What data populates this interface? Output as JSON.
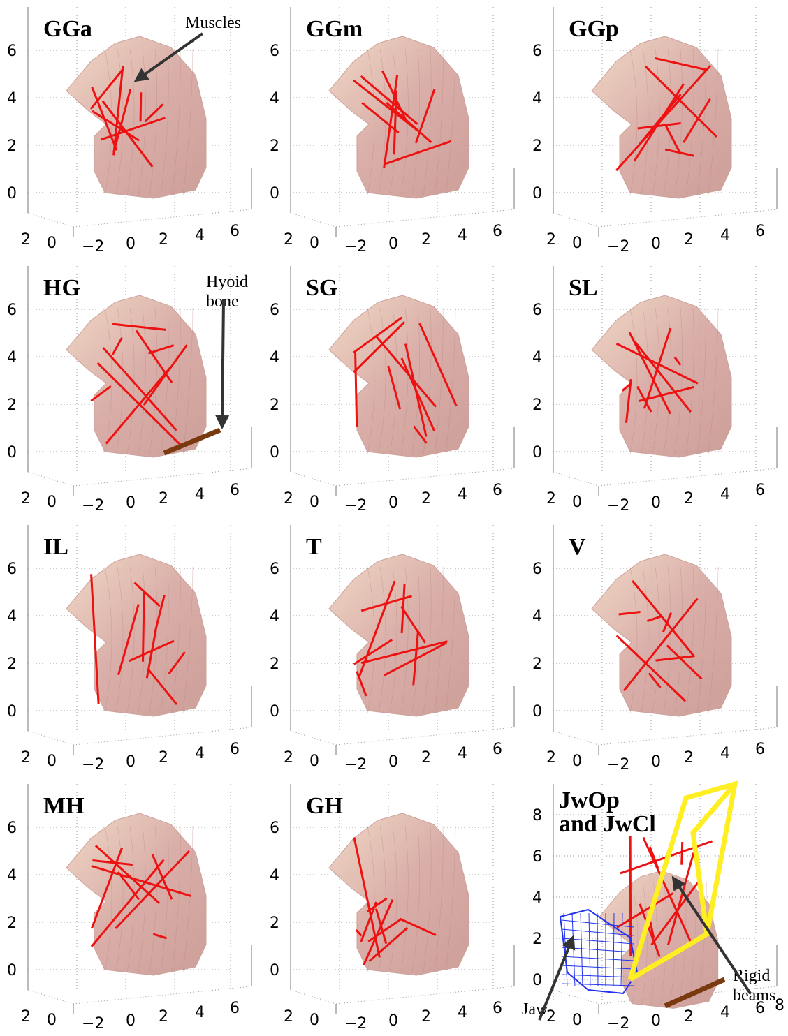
{
  "panels": [
    {
      "label_lines": [
        "GGa"
      ],
      "yticks": [
        "0",
        "2",
        "4",
        "6"
      ],
      "xticks": [
        "2",
        "0",
        "−2",
        "0",
        "2",
        "4",
        "6"
      ],
      "annotations": [
        {
          "lines": [
            "Muscles"
          ]
        }
      ]
    },
    {
      "label_lines": [
        "GGm"
      ],
      "yticks": [
        "0",
        "2",
        "4",
        "6"
      ],
      "xticks": [
        "2",
        "0",
        "−2",
        "0",
        "2",
        "4",
        "6"
      ],
      "annotations": []
    },
    {
      "label_lines": [
        "GGp"
      ],
      "yticks": [
        "0",
        "2",
        "4",
        "6"
      ],
      "xticks": [
        "2",
        "0",
        "−2",
        "0",
        "2",
        "4",
        "6"
      ],
      "annotations": []
    },
    {
      "label_lines": [
        "HG"
      ],
      "yticks": [
        "0",
        "2",
        "4",
        "6"
      ],
      "xticks": [
        "2",
        "0",
        "−2",
        "0",
        "2",
        "4",
        "6"
      ],
      "annotations": [
        {
          "lines": [
            "Hyoid",
            "bone"
          ]
        }
      ]
    },
    {
      "label_lines": [
        "SG"
      ],
      "yticks": [
        "0",
        "2",
        "4",
        "6"
      ],
      "xticks": [
        "2",
        "0",
        "−2",
        "0",
        "2",
        "4",
        "6"
      ],
      "annotations": []
    },
    {
      "label_lines": [
        "SL"
      ],
      "yticks": [
        "0",
        "2",
        "4",
        "6"
      ],
      "xticks": [
        "2",
        "0",
        "−2",
        "0",
        "2",
        "4",
        "6"
      ],
      "annotations": []
    },
    {
      "label_lines": [
        "IL"
      ],
      "yticks": [
        "0",
        "2",
        "4",
        "6"
      ],
      "xticks": [
        "2",
        "0",
        "−2",
        "0",
        "2",
        "4",
        "6"
      ],
      "annotations": []
    },
    {
      "label_lines": [
        "T"
      ],
      "yticks": [
        "0",
        "2",
        "4",
        "6"
      ],
      "xticks": [
        "2",
        "0",
        "−2",
        "0",
        "2",
        "4",
        "6"
      ],
      "annotations": []
    },
    {
      "label_lines": [
        "V"
      ],
      "yticks": [
        "0",
        "2",
        "4",
        "6"
      ],
      "xticks": [
        "2",
        "0",
        "−2",
        "0",
        "2",
        "4",
        "6"
      ],
      "annotations": []
    },
    {
      "label_lines": [
        "MH"
      ],
      "yticks": [
        "0",
        "2",
        "4",
        "6"
      ],
      "xticks": [
        "2",
        "0",
        "−2",
        "0",
        "2",
        "4",
        "6"
      ],
      "annotations": []
    },
    {
      "label_lines": [
        "GH"
      ],
      "yticks": [
        "0",
        "2",
        "4",
        "6"
      ],
      "xticks": [
        "2",
        "0",
        "−2",
        "0",
        "2",
        "4",
        "6"
      ],
      "annotations": []
    },
    {
      "label_lines": [
        "JwOp",
        "and JwCl"
      ],
      "yticks": [
        "0",
        "2",
        "4",
        "6",
        "8"
      ],
      "xticks": [
        "2",
        "0",
        "−2",
        "0",
        "2",
        "4",
        "6",
        "8"
      ],
      "annotations": [
        {
          "lines": [
            "Rigid",
            "beams"
          ]
        },
        {
          "lines": [
            "Jaw"
          ]
        }
      ]
    }
  ]
}
